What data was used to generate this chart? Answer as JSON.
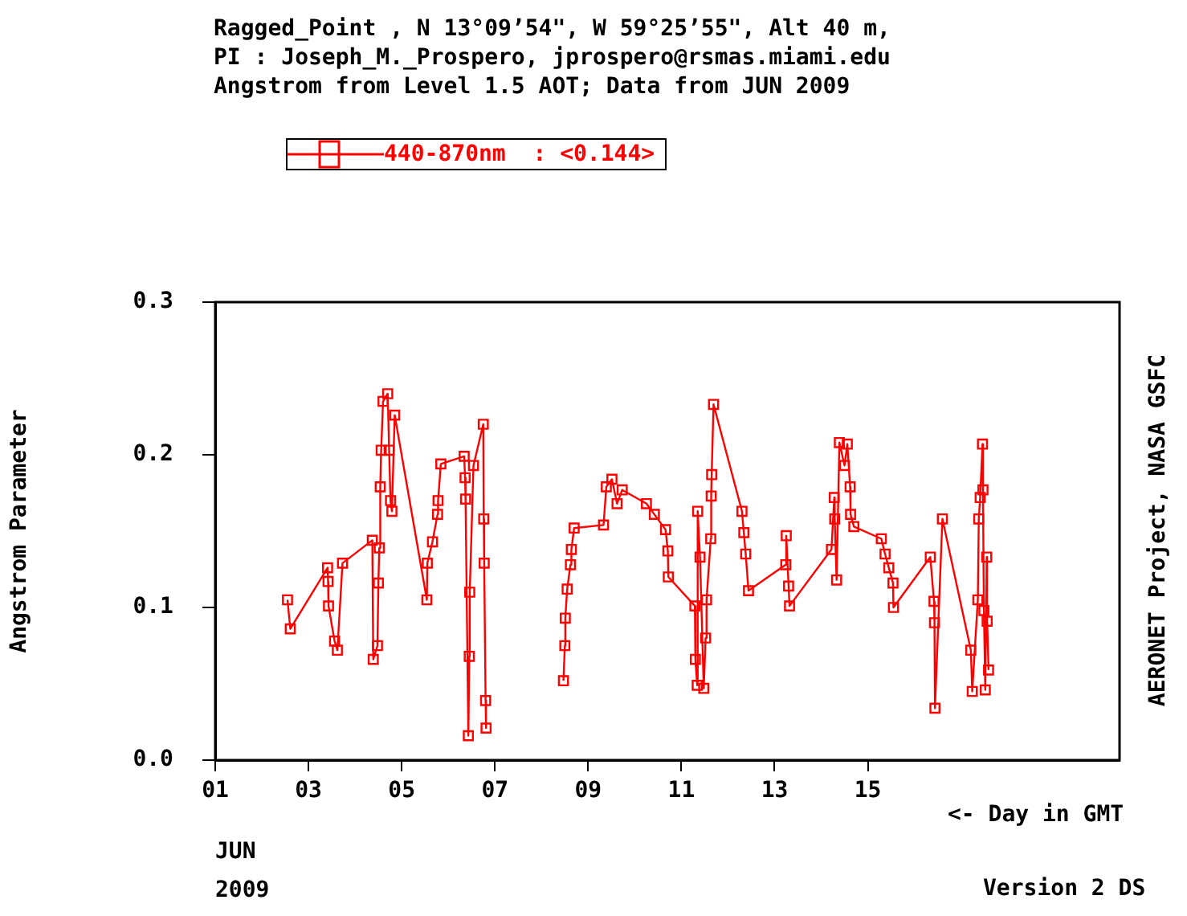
{
  "chart_data": {
    "type": "line",
    "title": "Ragged_Point , N 13°09’54\", W 59°25’55\", Alt 40 m,",
    "subtitle": "PI : Joseph_M._Prospero, jprospero@rsmas.miami.edu\nAngstrom from Level 1.5 AOT; Data from JUN 2009",
    "xlabel": "<- Day in GMT",
    "ylabel": "Angstrom Parameter",
    "annotations": [
      "JUN",
      "2009",
      "AERONET Project, NASA GSFC",
      "Version 2 DS"
    ],
    "xlim": [
      1,
      20.4
    ],
    "xticks": [
      {
        "value": 1,
        "label": "01"
      },
      {
        "value": 3,
        "label": "03"
      },
      {
        "value": 5,
        "label": "05"
      },
      {
        "value": 7,
        "label": "07"
      },
      {
        "value": 9,
        "label": "09"
      },
      {
        "value": 11,
        "label": "11"
      },
      {
        "value": 13,
        "label": "13"
      },
      {
        "value": 15,
        "label": "15"
      }
    ],
    "ylim": [
      0,
      0.3
    ],
    "yticks": [
      {
        "value": 0,
        "label": "0.0"
      },
      {
        "value": 0.1,
        "label": "0.1"
      },
      {
        "value": 0.2,
        "label": "0.2"
      },
      {
        "value": 0.3,
        "label": "0.3"
      }
    ],
    "legend": "top left",
    "marker": "square",
    "line_style": "solid",
    "series": [
      {
        "name": "440-870nm  : <0.144>",
        "color": "#ff0000",
        "x": [
          2.55,
          2.61,
          3.41,
          3.42,
          3.43,
          3.56,
          3.62,
          3.73,
          4.37,
          4.39,
          4.48,
          4.5,
          4.52,
          4.54,
          4.56,
          4.6,
          4.7,
          4.73,
          4.76,
          4.79,
          4.85,
          5.54,
          5.55,
          5.66,
          5.77,
          5.78,
          5.84,
          6.34,
          6.36,
          6.37,
          6.43,
          6.45,
          6.46,
          6.54,
          6.75,
          6.76,
          6.77,
          6.8,
          6.81,
          7.6,
          8.47,
          8.5,
          8.51,
          8.55,
          8.62,
          8.64,
          8.7,
          9.33,
          9.39,
          9.51,
          9.62,
          9.73,
          10.25,
          10.42,
          10.66,
          10.71,
          10.72,
          11.29,
          11.3,
          11.34,
          11.35,
          11.4,
          11.48,
          11.52,
          11.54,
          11.63,
          11.64,
          11.65,
          11.69,
          12.3,
          12.34,
          12.38,
          12.44,
          13.24,
          13.25,
          13.3,
          13.32,
          14.22,
          14.28,
          14.29,
          14.33,
          14.39,
          14.5,
          14.56,
          14.62,
          14.63,
          14.7,
          15.29,
          15.37,
          15.45,
          15.54,
          15.55,
          16.34,
          16.42,
          16.43,
          16.44,
          16.6,
          17.21,
          17.24,
          17.36,
          17.38,
          17.41,
          17.46,
          17.47,
          17.49,
          17.52,
          17.55,
          17.56,
          17.59
        ],
        "values": [
          0.105,
          0.086,
          0.126,
          0.117,
          0.101,
          0.078,
          0.072,
          0.129,
          0.144,
          0.066,
          0.075,
          0.116,
          0.139,
          0.179,
          0.203,
          0.235,
          0.24,
          0.203,
          0.17,
          0.163,
          0.226,
          0.105,
          0.129,
          0.143,
          0.161,
          0.17,
          0.194,
          0.199,
          0.185,
          0.171,
          0.016,
          0.068,
          0.11,
          0.193,
          0.22,
          0.158,
          0.129,
          0.039,
          0.021,
          null,
          0.052,
          0.075,
          0.093,
          0.112,
          0.128,
          0.138,
          0.152,
          0.154,
          0.179,
          0.184,
          0.168,
          0.177,
          0.168,
          0.161,
          0.151,
          0.137,
          0.12,
          0.101,
          0.066,
          0.049,
          0.163,
          0.133,
          0.047,
          0.08,
          0.105,
          0.145,
          0.173,
          0.187,
          0.233,
          0.163,
          0.149,
          0.135,
          0.111,
          0.128,
          0.147,
          0.114,
          0.101,
          0.138,
          0.172,
          0.158,
          0.118,
          0.208,
          0.193,
          0.207,
          0.179,
          0.161,
          0.153,
          0.145,
          0.135,
          0.126,
          0.116,
          0.1,
          0.133,
          0.104,
          0.09,
          0.034,
          0.158,
          0.072,
          0.045,
          0.105,
          0.158,
          0.172,
          0.207,
          0.177,
          0.098,
          0.046,
          0.133,
          0.091,
          0.059
        ]
      }
    ]
  }
}
